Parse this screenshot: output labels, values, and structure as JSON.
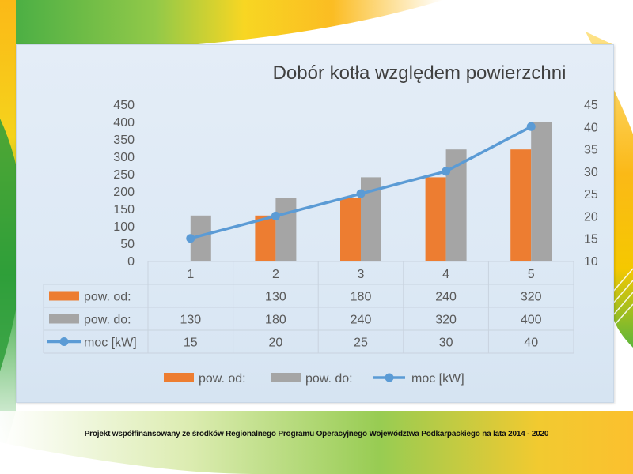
{
  "colors": {
    "pow_od": "#ed7d31",
    "pow_do": "#a5a5a5",
    "moc": "#5b9bd5"
  },
  "footer_text": "Projekt współfinansowany ze środków Regionalnego Programu Operacyjnego  Województwa Podkarpackiego na lata 2014 - 2020",
  "chart_data": {
    "type": "bar",
    "title": "Dobór kotła względem powierzchni",
    "categories": [
      "1",
      "2",
      "3",
      "4",
      "5"
    ],
    "series": [
      {
        "name": "pow. od:",
        "type": "bar",
        "axis": "left",
        "values": [
          null,
          130,
          180,
          240,
          320
        ],
        "table": [
          "",
          "130",
          "180",
          "240",
          "320"
        ]
      },
      {
        "name": "pow. do:",
        "type": "bar",
        "axis": "left",
        "values": [
          130,
          180,
          240,
          320,
          400
        ],
        "table": [
          "130",
          "180",
          "240",
          "320",
          "400"
        ]
      },
      {
        "name": "moc [kW]",
        "type": "line",
        "axis": "right",
        "values": [
          15,
          20,
          25,
          30,
          40
        ],
        "table": [
          "15",
          "20",
          "25",
          "30",
          "40"
        ]
      }
    ],
    "ylim": [
      0,
      450
    ],
    "yticks": [
      "450",
      "400",
      "350",
      "300",
      "250",
      "200",
      "150",
      "100",
      "50",
      "0"
    ],
    "y2lim": [
      10,
      45
    ],
    "y2ticks": [
      "45",
      "40",
      "35",
      "30",
      "25",
      "20",
      "15",
      "10"
    ],
    "data_table": true,
    "legend": "bottom"
  }
}
